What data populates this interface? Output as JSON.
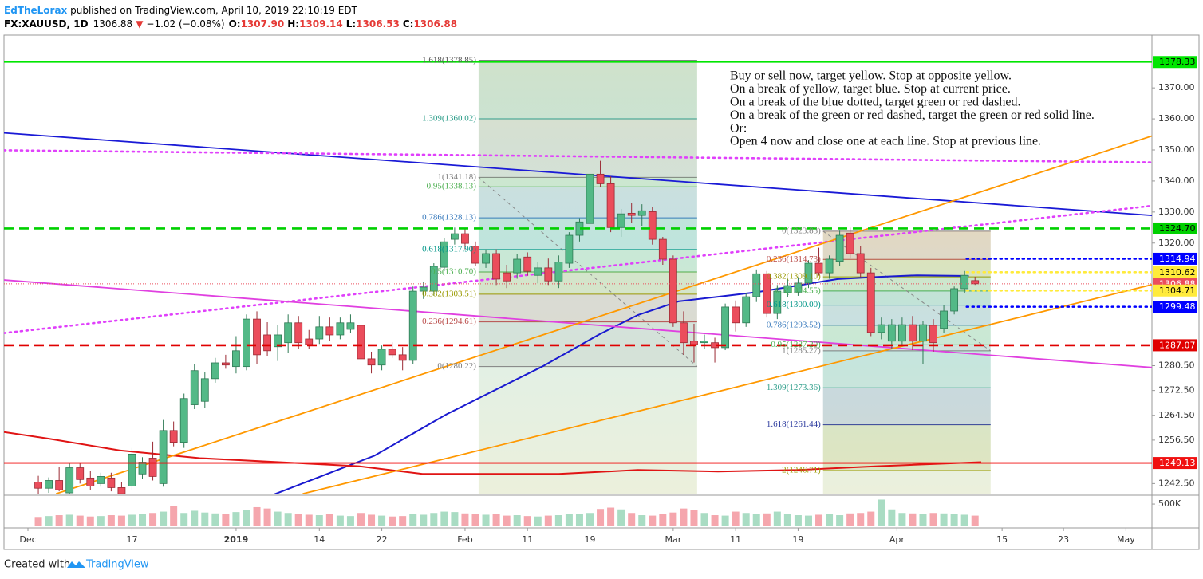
{
  "header": {
    "author": "EdTheLorax",
    "published": " published on TradingView.com, April 10, 2019 22:10:19 EDT",
    "symbol": "FX:XAUUSD, 1D",
    "price": "1306.88",
    "arrow": "▼",
    "change": "−1.02 (−0.08%)",
    "ohlc": [
      {
        "label": "O:",
        "value": "1307.90"
      },
      {
        "label": "H:",
        "value": "1309.14"
      },
      {
        "label": "L:",
        "value": "1306.53"
      },
      {
        "label": "C:",
        "value": "1306.88"
      }
    ]
  },
  "chart_data": {
    "type": "candlestick",
    "xlim": [
      -3.3,
      107
    ],
    "ylim": [
      1239,
      1387
    ],
    "xticks": [
      {
        "value": -1,
        "label": "Dec"
      },
      {
        "value": 9,
        "label": "17"
      },
      {
        "value": 19,
        "label": "2019"
      },
      {
        "value": 27,
        "label": "14"
      },
      {
        "value": 33,
        "label": "22"
      },
      {
        "value": 41,
        "label": "Feb"
      },
      {
        "value": 47,
        "label": "11"
      },
      {
        "value": 53,
        "label": "19"
      },
      {
        "value": 61,
        "label": "Mar"
      },
      {
        "value": 67,
        "label": "11"
      },
      {
        "value": 73,
        "label": "19"
      },
      {
        "value": 82.5,
        "label": "Apr"
      },
      {
        "value": 92.6,
        "label": "15"
      },
      {
        "value": 98.5,
        "label": "23"
      },
      {
        "value": 104.5,
        "label": "May"
      }
    ],
    "yticks": [
      {
        "value": 1370,
        "label": "1370.00"
      },
      {
        "value": 1360,
        "label": "1360.00"
      },
      {
        "value": 1350,
        "label": "1350.00"
      },
      {
        "value": 1340,
        "label": "1340.00"
      },
      {
        "value": 1330,
        "label": "1330.00"
      },
      {
        "value": 1320,
        "label": "1320.00"
      },
      {
        "value": 1280.5,
        "label": "1280.50"
      },
      {
        "value": 1272.5,
        "label": "1272.50"
      },
      {
        "value": 1264.5,
        "label": "1264.50"
      },
      {
        "value": 1256.5,
        "label": "1256.50"
      },
      {
        "value": 1242.5,
        "label": "1242.50"
      }
    ],
    "up_color": "#53b987",
    "down_color": "#eb4d5c",
    "ohlc": [
      [
        1243.0,
        1245.0,
        1239.0,
        1241.0
      ],
      [
        1241.0,
        1244.5,
        1239.5,
        1243.5
      ],
      [
        1243.5,
        1248.0,
        1240.0,
        1240.5
      ],
      [
        1239.5,
        1249.0,
        1239.0,
        1247.6
      ],
      [
        1247.6,
        1249.0,
        1242.5,
        1243.8
      ],
      [
        1244.3,
        1246.5,
        1240.5,
        1241.7
      ],
      [
        1242.5,
        1246.0,
        1241.5,
        1244.8
      ],
      [
        1244.3,
        1246.0,
        1240.0,
        1241.2
      ],
      [
        1241.2,
        1243.0,
        1238.5,
        1239.2
      ],
      [
        1241.7,
        1254.0,
        1240.5,
        1252.0
      ],
      [
        1245.6,
        1251.0,
        1244.0,
        1249.4
      ],
      [
        1250.7,
        1256.0,
        1243.5,
        1244.8
      ],
      [
        1242.5,
        1263.0,
        1241.5,
        1259.6
      ],
      [
        1259.6,
        1262.5,
        1254.5,
        1255.8
      ],
      [
        1255.8,
        1271.5,
        1254.0,
        1269.9
      ],
      [
        1267.9,
        1281.0,
        1266.5,
        1278.9
      ],
      [
        1269.0,
        1278.5,
        1267.0,
        1276.3
      ],
      [
        1276.3,
        1283.0,
        1275.0,
        1281.4
      ],
      [
        1281.4,
        1284.0,
        1279.5,
        1280.7
      ],
      [
        1280.2,
        1290.0,
        1278.0,
        1285.3
      ],
      [
        1280.2,
        1297.0,
        1279.0,
        1295.5
      ],
      [
        1295.5,
        1298.0,
        1281.0,
        1284.0
      ],
      [
        1290.4,
        1294.5,
        1283.5,
        1285.3
      ],
      [
        1286.6,
        1293.5,
        1282.0,
        1290.4
      ],
      [
        1287.9,
        1297.0,
        1284.5,
        1294.3
      ],
      [
        1294.3,
        1296.5,
        1286.0,
        1287.9
      ],
      [
        1289.1,
        1292.0,
        1286.0,
        1287.3
      ],
      [
        1289.1,
        1296.5,
        1287.5,
        1293.0
      ],
      [
        1293.0,
        1296.0,
        1288.5,
        1290.4
      ],
      [
        1290.4,
        1296.0,
        1289.0,
        1294.3
      ],
      [
        1292.2,
        1297.0,
        1291.0,
        1294.3
      ],
      [
        1293.5,
        1295.5,
        1281.5,
        1282.7
      ],
      [
        1282.7,
        1285.0,
        1278.0,
        1280.7
      ],
      [
        1280.7,
        1287.0,
        1279.0,
        1285.8
      ],
      [
        1285.8,
        1288.0,
        1283.0,
        1284.0
      ],
      [
        1284.0,
        1286.5,
        1279.0,
        1282.2
      ],
      [
        1282.2,
        1306.0,
        1281.0,
        1304.5
      ],
      [
        1304.5,
        1307.5,
        1302.0,
        1305.8
      ],
      [
        1304.5,
        1313.5,
        1303.0,
        1312.5
      ],
      [
        1312.2,
        1321.5,
        1311.0,
        1320.4
      ],
      [
        1321.2,
        1325.0,
        1319.5,
        1323.0
      ],
      [
        1323.0,
        1324.5,
        1318.0,
        1319.9
      ],
      [
        1319.0,
        1320.5,
        1312.5,
        1313.5
      ],
      [
        1313.5,
        1318.0,
        1312.0,
        1316.6
      ],
      [
        1316.6,
        1318.0,
        1306.5,
        1308.4
      ],
      [
        1310.4,
        1313.0,
        1305.5,
        1307.8
      ],
      [
        1310.4,
        1316.5,
        1308.5,
        1314.8
      ],
      [
        1315.5,
        1317.0,
        1309.5,
        1310.9
      ],
      [
        1309.6,
        1314.0,
        1307.0,
        1312.0
      ],
      [
        1312.0,
        1315.0,
        1306.5,
        1307.8
      ],
      [
        1307.8,
        1316.0,
        1305.5,
        1313.9
      ],
      [
        1313.5,
        1323.5,
        1312.0,
        1322.5
      ],
      [
        1322.5,
        1328.0,
        1320.5,
        1326.8
      ],
      [
        1326.3,
        1343.0,
        1325.0,
        1342.2
      ],
      [
        1342.2,
        1346.5,
        1338.0,
        1339.1
      ],
      [
        1339.1,
        1341.5,
        1323.5,
        1325.0
      ],
      [
        1325.0,
        1331.0,
        1322.0,
        1329.4
      ],
      [
        1329.6,
        1333.0,
        1326.5,
        1328.9
      ],
      [
        1328.9,
        1332.5,
        1325.5,
        1330.4
      ],
      [
        1330.1,
        1331.5,
        1319.5,
        1321.2
      ],
      [
        1321.2,
        1322.0,
        1313.0,
        1314.8
      ],
      [
        1314.8,
        1316.0,
        1293.0,
        1294.3
      ],
      [
        1294.3,
        1298.0,
        1284.0,
        1287.9
      ],
      [
        1288.4,
        1294.0,
        1281.5,
        1287.3
      ],
      [
        1287.9,
        1290.5,
        1286.0,
        1288.4
      ],
      [
        1287.9,
        1289.5,
        1281.5,
        1286.3
      ],
      [
        1286.3,
        1300.5,
        1285.5,
        1299.4
      ],
      [
        1299.4,
        1301.5,
        1291.5,
        1294.3
      ],
      [
        1294.3,
        1304.0,
        1293.0,
        1302.7
      ],
      [
        1302.7,
        1311.5,
        1301.0,
        1310.1
      ],
      [
        1310.1,
        1311.0,
        1296.0,
        1297.3
      ],
      [
        1297.3,
        1306.5,
        1295.5,
        1304.5
      ],
      [
        1304.0,
        1308.5,
        1302.5,
        1306.3
      ],
      [
        1304.2,
        1309.0,
        1303.0,
        1307.1
      ],
      [
        1307.1,
        1314.5,
        1305.5,
        1313.5
      ],
      [
        1313.5,
        1318.5,
        1309.5,
        1310.4
      ],
      [
        1310.4,
        1316.0,
        1308.5,
        1314.8
      ],
      [
        1314.1,
        1324.0,
        1312.5,
        1322.5
      ],
      [
        1323.2,
        1325.0,
        1315.0,
        1316.6
      ],
      [
        1316.6,
        1319.0,
        1309.0,
        1310.4
      ],
      [
        1310.4,
        1312.0,
        1290.0,
        1291.2
      ],
      [
        1291.2,
        1296.0,
        1289.0,
        1293.7
      ],
      [
        1288.4,
        1295.5,
        1286.0,
        1293.7
      ],
      [
        1288.4,
        1296.0,
        1287.0,
        1293.7
      ],
      [
        1293.7,
        1296.5,
        1285.5,
        1288.4
      ],
      [
        1288.4,
        1295.0,
        1281.0,
        1293.7
      ],
      [
        1293.5,
        1295.5,
        1285.0,
        1287.9
      ],
      [
        1292.5,
        1300.0,
        1291.0,
        1298.1
      ],
      [
        1298.1,
        1306.0,
        1297.0,
        1305.3
      ],
      [
        1305.3,
        1311.0,
        1304.0,
        1309.6
      ],
      [
        1307.9,
        1309.14,
        1306.53,
        1306.88
      ]
    ],
    "volume": [
      210000,
      230000,
      250000,
      260000,
      240000,
      220000,
      230000,
      250000,
      240000,
      260000,
      280000,
      300000,
      330000,
      450000,
      300000,
      350000,
      310000,
      290000,
      280000,
      320000,
      360000,
      430000,
      400000,
      330000,
      300000,
      280000,
      260000,
      250000,
      270000,
      240000,
      230000,
      300000,
      260000,
      240000,
      220000,
      230000,
      280000,
      260000,
      300000,
      330000,
      320000,
      290000,
      280000,
      260000,
      270000,
      240000,
      250000,
      230000,
      220000,
      240000,
      250000,
      270000,
      280000,
      300000,
      390000,
      420000,
      380000,
      300000,
      250000,
      240000,
      280000,
      310000,
      400000,
      360000,
      300000,
      250000,
      240000,
      330000,
      300000,
      280000,
      290000,
      330000,
      280000,
      250000,
      240000,
      260000,
      270000,
      250000,
      290000,
      300000,
      330000,
      600000,
      380000,
      300000,
      290000,
      280000,
      300000,
      290000,
      270000,
      260000,
      240000
    ],
    "volume_lim": [
      0,
      680000
    ],
    "volume_ticks": [
      {
        "value": 500000,
        "label": "500K"
      }
    ],
    "moving_averages": [
      {
        "color": "#1a1ad0",
        "x": [
          22.4,
          32.3,
          39.2,
          48.4,
          53.8,
          57.6,
          61.5,
          65.3,
          69.1,
          72.9,
          76.8,
          80.6,
          84.4,
          89.4
        ],
        "values": [
          1238.7,
          1251.5,
          1264.8,
          1280.2,
          1290.4,
          1296.8,
          1301.2,
          1302.7,
          1304.2,
          1306.3,
          1308.4,
          1309.1,
          1309.6,
          1309.4
        ]
      },
      {
        "color": "#e01414",
        "x": [
          -3.3,
          0.9,
          7.8,
          15.5,
          23.1,
          30.8,
          36.9,
          42.3,
          50,
          57.6,
          65.3,
          72.9,
          80.6,
          90.6
        ],
        "values": [
          1259.1,
          1257.0,
          1253.2,
          1250.7,
          1249.4,
          1248.1,
          1245.6,
          1245.6,
          1245.6,
          1246.9,
          1246.4,
          1246.9,
          1248.1,
          1249.4
        ]
      }
    ],
    "trendlines": [
      {
        "color": "#1a1ad6",
        "style": "solid",
        "x": [
          -3.3,
          107
        ],
        "values": [
          1355.5,
          1328.9
        ]
      },
      {
        "color": "#e040fb",
        "style": "dotted",
        "x": [
          -3.3,
          107
        ],
        "values": [
          1349.9,
          1346.0
        ]
      },
      {
        "color": "#e040fb",
        "style": "dotted",
        "x": [
          -3.3,
          107
        ],
        "values": [
          1291.0,
          1332.0
        ]
      },
      {
        "color": "#e040e0",
        "style": "solid",
        "x": [
          -3.3,
          107
        ],
        "values": [
          1308.1,
          1279.9
        ]
      },
      {
        "color": "#ff9800",
        "style": "solid",
        "x": [
          1.7,
          107
        ],
        "values": [
          1239.2,
          1354.5
        ]
      },
      {
        "color": "#ff9800",
        "style": "solid",
        "x": [
          25.4,
          107
        ],
        "values": [
          1239.2,
          1306.6
        ]
      }
    ],
    "hlines": [
      {
        "value": 1378.33,
        "label": "1378.33",
        "color": "#00e600",
        "style": "solid",
        "text_color": "#000000"
      },
      {
        "value": 1324.7,
        "label": "1324.70",
        "color": "#00d000",
        "style": "dashed",
        "text_color": "#000000"
      },
      {
        "value": 1314.94,
        "label": "1314.94",
        "color": "#0000ff",
        "style": "dotted",
        "text_color": "#ffffff",
        "x_start": 89.2
      },
      {
        "value": 1310.62,
        "label": "1310.62",
        "color": "#ffeb3b",
        "style": "dotted",
        "text_color": "#000000",
        "x_start": 89.2
      },
      {
        "value": 1306.88,
        "label": "1306.88",
        "color": "#eb4d5c",
        "style": "thin",
        "text_color": "#ffffff"
      },
      {
        "value": 1304.71,
        "label": "1304.71",
        "color": "#ffeb3b",
        "style": "dotted",
        "text_color": "#000000",
        "x_start": 89.2
      },
      {
        "value": 1299.48,
        "label": "1299.48",
        "color": "#0000ff",
        "style": "dotted",
        "text_color": "#ffffff",
        "x_start": 89.2
      },
      {
        "value": 1287.07,
        "label": "1287.07",
        "color": "#e00000",
        "style": "dashed",
        "text_color": "#ffffff"
      },
      {
        "value": 1249.13,
        "label": "1249.13",
        "color": "#f01010",
        "style": "solid",
        "text_color": "#ffffff"
      }
    ],
    "fibs": [
      {
        "x": [
          42.3,
          63.3
        ],
        "diagonal": [
          1341.18,
          1280.22
        ],
        "levels": [
          {
            "label": "1.618(1378.85)",
            "value": 1378.85,
            "color": "#555555"
          },
          {
            "label": "1.309(1360.02)",
            "value": 1360.02,
            "color": "#2e9e8a"
          },
          {
            "label": "1(1341.18)",
            "value": 1341.18,
            "color": "#808080"
          },
          {
            "label": "0.95(1338.13)",
            "value": 1338.13,
            "color": "#4caf50"
          },
          {
            "label": "0.786(1328.13)",
            "value": 1328.13,
            "color": "#3a7bbd"
          },
          {
            "label": "0.618(1317.90)",
            "value": 1317.9,
            "color": "#009688"
          },
          {
            "label": "0.5(1310.70)",
            "value": 1310.7,
            "color": "#4caf50"
          },
          {
            "label": "0.382(1303.51)",
            "value": 1303.51,
            "color": "#9a9a00"
          },
          {
            "label": "0.236(1294.61)",
            "value": 1294.61,
            "color": "#b94a48"
          },
          {
            "label": "0(1280.22)",
            "value": 1280.22,
            "color": "#808080"
          }
        ]
      },
      {
        "x": [
          75.4,
          91.5
        ],
        "diagonal": [
          1323.83,
          1285.27
        ],
        "levels": [
          {
            "label": "0(1323.83)",
            "value": 1323.83,
            "color": "#808080"
          },
          {
            "label": "0.236(1314.73)",
            "value": 1314.73,
            "color": "#b94a48"
          },
          {
            "label": "0.382(1309.10)",
            "value": 1309.1,
            "color": "#9a9a00"
          },
          {
            "label": "0.5(1304.55)",
            "value": 1304.55,
            "color": "#4caf50"
          },
          {
            "label": "0.618(1300.00)",
            "value": 1300.0,
            "color": "#009688"
          },
          {
            "label": "0.786(1293.52)",
            "value": 1293.52,
            "color": "#3a7bbd"
          },
          {
            "label": "0.95(1287.20)",
            "value": 1287.2,
            "color": "#4caf50"
          },
          {
            "label": "1(1285.27)",
            "value": 1285.27,
            "color": "#808080"
          },
          {
            "label": "1.309(1273.36)",
            "value": 1273.36,
            "color": "#2e9e8a"
          },
          {
            "label": "1.618(1261.44)",
            "value": 1261.44,
            "color": "#2b3a9e"
          },
          {
            "label": "2(1246.71)",
            "value": 1246.71,
            "color": "#9a9a00"
          }
        ]
      }
    ],
    "annotation": [
      "Buy or sell now, target yellow. Stop at opposite yellow.",
      "On a break of yellow, target blue. Stop at current price.",
      "On a break of the blue dotted, target green or red dashed.",
      "On a break of the green or red dashed, target the green or red solid line.",
      "Or:",
      "Open 4 now and close one at each line. Stop at previous line."
    ]
  },
  "footer": {
    "created": "Created with",
    "brand": "TradingView"
  }
}
